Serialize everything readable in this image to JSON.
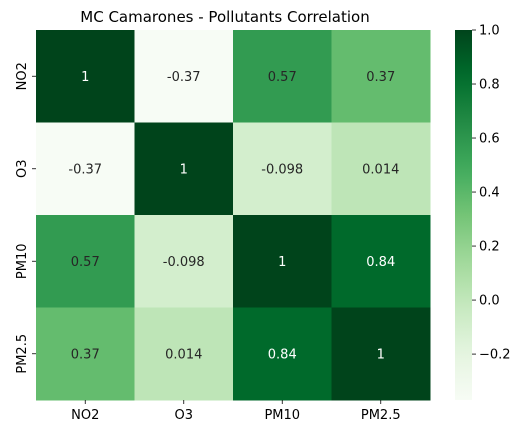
{
  "chart_data": {
    "type": "heatmap",
    "title": "MC Camarones - Pollutants Correlation",
    "xlabel": "",
    "ylabel": "",
    "x_categories": [
      "NO2",
      "O3",
      "PM10",
      "PM2.5"
    ],
    "y_categories": [
      "NO2",
      "O3",
      "PM10",
      "PM2.5"
    ],
    "values": [
      [
        1,
        -0.37,
        0.57,
        0.37
      ],
      [
        -0.37,
        1,
        -0.098,
        0.014
      ],
      [
        0.57,
        -0.098,
        1,
        0.84
      ],
      [
        0.37,
        0.014,
        0.84,
        1
      ]
    ],
    "value_labels": [
      [
        "1",
        "-0.37",
        "0.57",
        "0.37"
      ],
      [
        "-0.37",
        "1",
        "-0.098",
        "0.014"
      ],
      [
        "0.57",
        "-0.098",
        "1",
        "0.84"
      ],
      [
        "0.37",
        "0.014",
        "0.84",
        "1"
      ]
    ],
    "colorscale": "Greens",
    "color_range": [
      -0.37,
      1
    ],
    "colorbar_ticks": [
      {
        "value": 1.0,
        "label": "1.0"
      },
      {
        "value": 0.8,
        "label": "0.8"
      },
      {
        "value": 0.6,
        "label": "0.6"
      },
      {
        "value": 0.4,
        "label": "0.4"
      },
      {
        "value": 0.2,
        "label": "0.2"
      },
      {
        "value": 0.0,
        "label": "0.0"
      },
      {
        "value": -0.2,
        "label": "−0.2"
      }
    ],
    "colors": {
      "low": "#f7fcf5",
      "high": "#00441b",
      "text_dark": "#262626",
      "text_light": "#ffffff"
    }
  }
}
